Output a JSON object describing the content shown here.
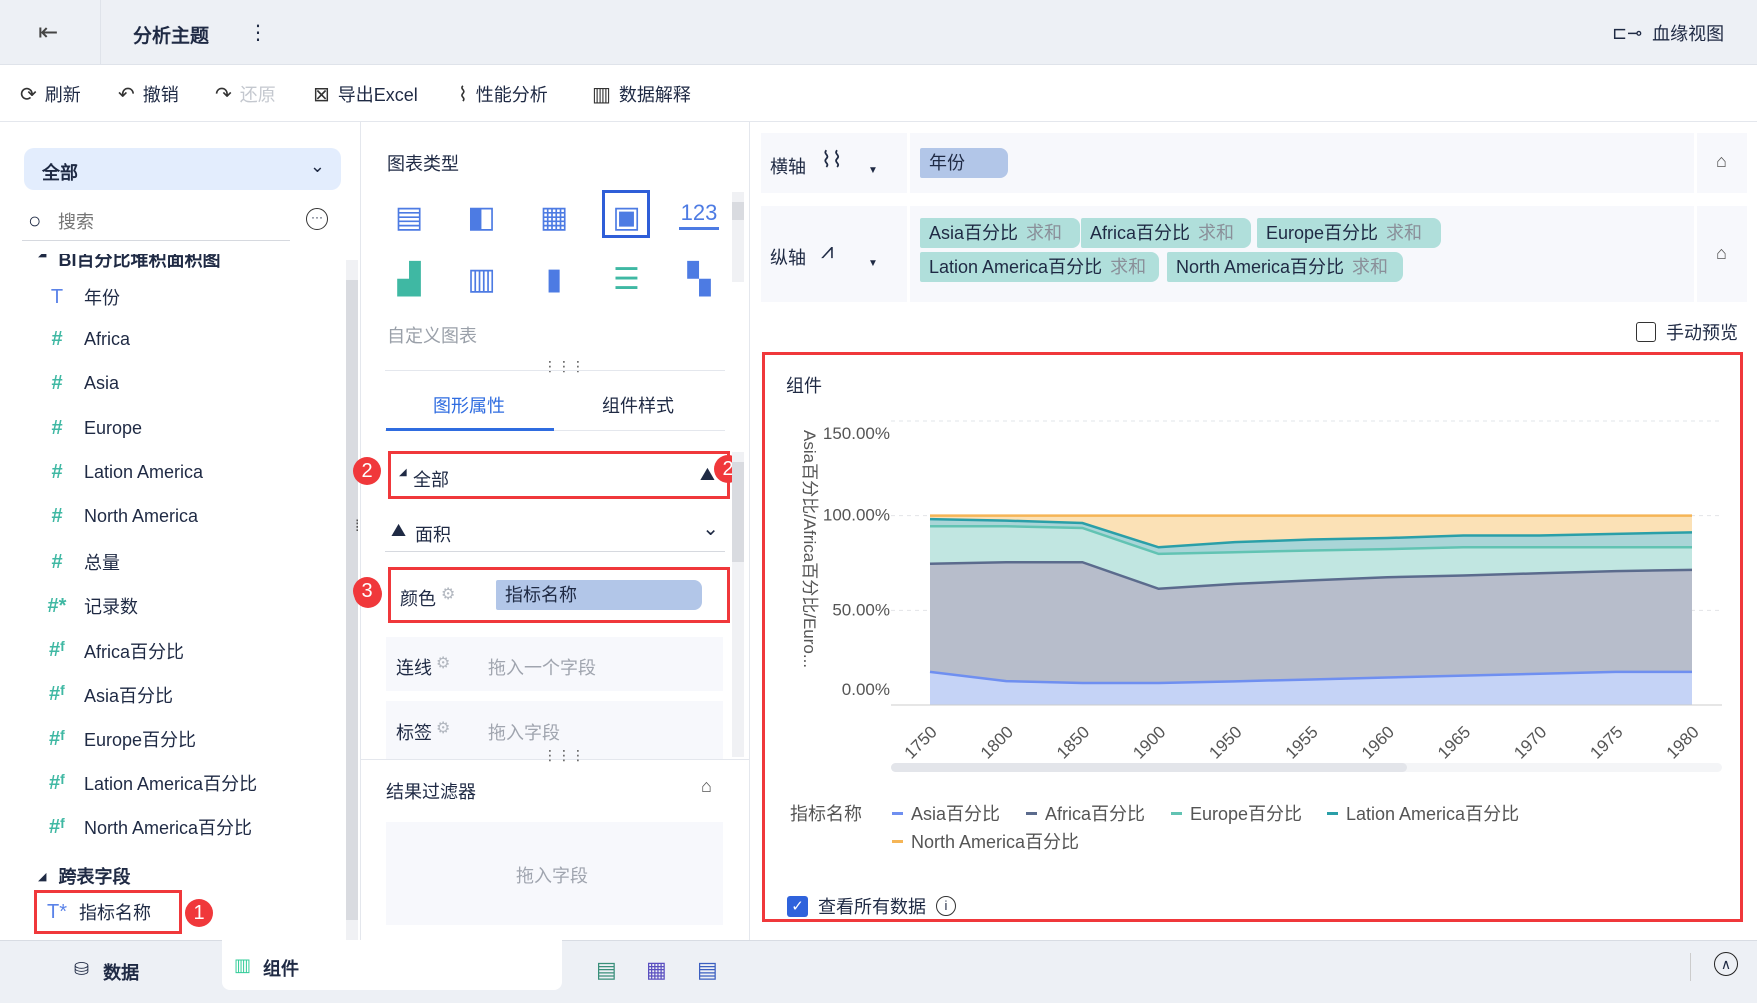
{
  "header": {
    "title": "分析主题",
    "lineage": "血缘视图"
  },
  "toolbar": {
    "refresh": "刷新",
    "undo": "撤销",
    "redo": "还原",
    "export": "导出Excel",
    "perf": "性能分析",
    "explain": "数据解释"
  },
  "left": {
    "dropdown": "全部",
    "search_placeholder": "搜索",
    "group_title": "BI百分比堆积面积图",
    "fields": [
      {
        "type": "T",
        "label": "年份"
      },
      {
        "type": "#",
        "label": "Africa"
      },
      {
        "type": "#",
        "label": "Asia"
      },
      {
        "type": "#",
        "label": "Europe"
      },
      {
        "type": "#",
        "label": "Lation America"
      },
      {
        "type": "#",
        "label": "North America"
      },
      {
        "type": "#",
        "label": "总量"
      },
      {
        "type": "#*",
        "label": "记录数"
      },
      {
        "type": "#f",
        "label": "Africa百分比"
      },
      {
        "type": "#f",
        "label": "Asia百分比"
      },
      {
        "type": "#f",
        "label": "Europe百分比"
      },
      {
        "type": "#f",
        "label": "Lation America百分比"
      },
      {
        "type": "#f",
        "label": "North America百分比"
      }
    ],
    "cross_title": "跨表字段",
    "cross_field": "指标名称",
    "badge1": "1"
  },
  "middle": {
    "chart_type_title": "图表类型",
    "custom_chart": "自定义图表",
    "tab_props": "图形属性",
    "tab_style": "组件样式",
    "all_label": "全部",
    "badge2": "2",
    "mark_type": "面积",
    "color_label": "颜色",
    "color_field": "指标名称",
    "badge3": "3",
    "line_label": "连线",
    "line_ph": "拖入一个字段",
    "label_label": "标签",
    "label_ph": "拖入字段",
    "filter_title": "结果过滤器",
    "filter_ph": "拖入字段"
  },
  "axes": {
    "x_label": "横轴",
    "x_fields": [
      "年份"
    ],
    "y_label": "纵轴",
    "y_fields": [
      {
        "name": "Asia百分比",
        "agg": "求和"
      },
      {
        "name": "Africa百分比",
        "agg": "求和"
      },
      {
        "name": "Europe百分比",
        "agg": "求和"
      },
      {
        "name": "Lation America百分比",
        "agg": "求和"
      },
      {
        "name": "North America百分比",
        "agg": "求和"
      }
    ],
    "manual_preview": "手动预览"
  },
  "component": {
    "title": "组件",
    "legend_title": "指标名称",
    "view_all": "查看所有数据"
  },
  "chart_data": {
    "type": "area",
    "stacked": true,
    "ylabel": "Asia百分比/Africa百分比/Euro...",
    "ylim": [
      0,
      150
    ],
    "yticks": [
      "0.00%",
      "50.00%",
      "100.00%",
      "150.00%"
    ],
    "categories": [
      "1750",
      "1800",
      "1850",
      "1900",
      "1950",
      "1955",
      "1960",
      "1965",
      "1970",
      "1975",
      "1980"
    ],
    "series": [
      {
        "name": "Asia百分比",
        "color": "#6f8ff0",
        "fill": "#c5d3f6",
        "values": [
          17.5,
          12.6,
          11.6,
          11.6,
          12.5,
          13.5,
          14.5,
          15.5,
          16.5,
          17.5,
          17.5
        ]
      },
      {
        "name": "Africa百分比",
        "color": "#5b6b8d",
        "fill": "#b7bdcb",
        "values": [
          57.1,
          62.8,
          63.8,
          49.8,
          51.5,
          52.3,
          53.0,
          52.9,
          53.1,
          53.2,
          53.9
        ]
      },
      {
        "name": "Europe百分比",
        "color": "#62c3b3",
        "fill": "#c1e6e1",
        "values": [
          19.8,
          19.0,
          18.1,
          18.4,
          16.7,
          15.8,
          14.8,
          14.9,
          13.7,
          12.6,
          11.9
        ]
      },
      {
        "name": "Lation America百分比",
        "color": "#2a9fa8",
        "fill": "#a9d5d7",
        "values": [
          3.8,
          3.0,
          2.6,
          3.5,
          5.3,
          5.8,
          5.9,
          6.2,
          6.2,
          7.1,
          7.9
        ]
      },
      {
        "name": "North America百分比",
        "color": "#f5b556",
        "fill": "#fbe1b6",
        "values": [
          1.8,
          2.6,
          3.9,
          16.7,
          14.0,
          12.6,
          11.8,
          10.5,
          10.5,
          9.6,
          8.8
        ]
      }
    ],
    "grid": true,
    "legend": "bottom"
  },
  "bottom": {
    "data_tab": "数据",
    "component_tab": "组件"
  }
}
